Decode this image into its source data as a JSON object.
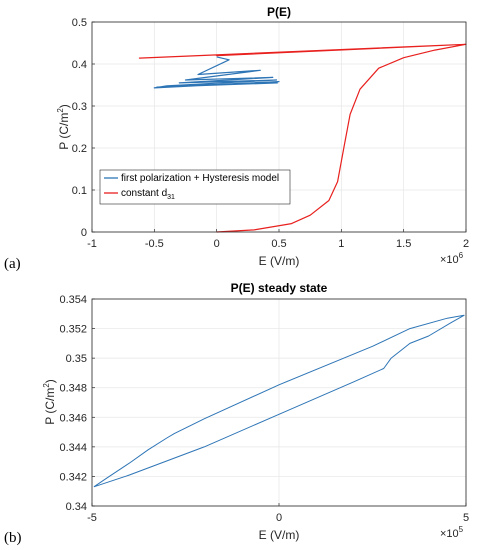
{
  "chart_data": [
    {
      "panel_label": "(a)",
      "type": "line",
      "title": "P(E)",
      "xlabel": "E (V/m)",
      "ylabel_base": "P (C/m",
      "ylabel_sup": "2",
      "ylabel_tail": ")",
      "x_multiplier_base": "×10",
      "x_multiplier_exp": "6",
      "xlim": [
        -1,
        2
      ],
      "ylim": [
        0,
        0.5
      ],
      "xticks": [
        -1,
        -0.5,
        0,
        0.5,
        1,
        1.5,
        2
      ],
      "xtick_labels": [
        "-1",
        "-0.5",
        "0",
        "0.5",
        "1",
        "1.5",
        "2"
      ],
      "yticks": [
        0,
        0.1,
        0.2,
        0.3,
        0.4,
        0.5
      ],
      "ytick_labels": [
        "0",
        "0.1",
        "0.2",
        "0.3",
        "0.4",
        "0.5"
      ],
      "grid": true,
      "legend_position": "bottom-left",
      "colors": {
        "blue": "#2e75b6",
        "red": "#e8201e"
      },
      "series": [
        {
          "name": "first polarization + Hysteresis model",
          "color": "#2e75b6",
          "points": [
            [
              0,
              0.417
            ],
            [
              0.1,
              0.41
            ],
            [
              -0.15,
              0.375
            ],
            [
              0.35,
              0.385
            ],
            [
              -0.25,
              0.362
            ],
            [
              0.45,
              0.368
            ],
            [
              -0.3,
              0.355
            ],
            [
              0.48,
              0.362
            ],
            [
              -0.4,
              0.348
            ],
            [
              -0.5,
              0.343
            ],
            [
              0.5,
              0.358
            ],
            [
              -0.48,
              0.345
            ],
            [
              0.49,
              0.355
            ]
          ]
        },
        {
          "name": "constant d",
          "name_sub": "31",
          "color": "#e8201e",
          "points": [
            [
              0,
              0
            ],
            [
              0.3,
              0.005
            ],
            [
              0.6,
              0.02
            ],
            [
              0.75,
              0.04
            ],
            [
              0.9,
              0.075
            ],
            [
              0.97,
              0.12
            ],
            [
              1.02,
              0.2
            ],
            [
              1.07,
              0.28
            ],
            [
              1.15,
              0.34
            ],
            [
              1.3,
              0.39
            ],
            [
              1.5,
              0.415
            ],
            [
              1.75,
              0.433
            ],
            [
              2,
              0.447
            ],
            [
              -0.62,
              0.414
            ],
            [
              2,
              0.447
            ],
            [
              0,
              0.42
            ],
            [
              0.6,
              0.428
            ]
          ]
        }
      ]
    },
    {
      "panel_label": "(b)",
      "type": "line",
      "title": "P(E) steady state",
      "xlabel": "E (V/m)",
      "ylabel_base": "P (C/m",
      "ylabel_sup": "2",
      "ylabel_tail": ")",
      "x_multiplier_base": "×10",
      "x_multiplier_exp": "5",
      "xlim": [
        -5,
        5
      ],
      "ylim": [
        0.34,
        0.354
      ],
      "xticks": [
        -5,
        0,
        5
      ],
      "xtick_labels": [
        "-5",
        "0",
        "5"
      ],
      "yticks": [
        0.34,
        0.342,
        0.344,
        0.346,
        0.348,
        0.35,
        0.352,
        0.354
      ],
      "ytick_labels": [
        "0.34",
        "0.342",
        "0.344",
        "0.346",
        "0.348",
        "0.35",
        "0.352",
        "0.354"
      ],
      "grid": true,
      "series": [
        {
          "name": "",
          "color": "#2e75b6",
          "points": [
            [
              -4.95,
              0.3413
            ],
            [
              -4.6,
              0.3419
            ],
            [
              -4.0,
              0.3429
            ],
            [
              -3.5,
              0.3438
            ],
            [
              -3.0,
              0.3446
            ],
            [
              -2.8,
              0.3449
            ],
            [
              -2.0,
              0.3459
            ],
            [
              0,
              0.3482
            ],
            [
              2.5,
              0.3508
            ],
            [
              3.5,
              0.352
            ],
            [
              4.5,
              0.3527
            ],
            [
              4.95,
              0.3529
            ],
            [
              4.6,
              0.3524
            ],
            [
              4.0,
              0.3515
            ],
            [
              3.5,
              0.351
            ],
            [
              3.0,
              0.35
            ],
            [
              2.8,
              0.3493
            ],
            [
              2.0,
              0.3484
            ],
            [
              0,
              0.3462
            ],
            [
              -2.0,
              0.344
            ],
            [
              -4.0,
              0.3421
            ],
            [
              -4.95,
              0.3413
            ]
          ]
        }
      ]
    }
  ]
}
